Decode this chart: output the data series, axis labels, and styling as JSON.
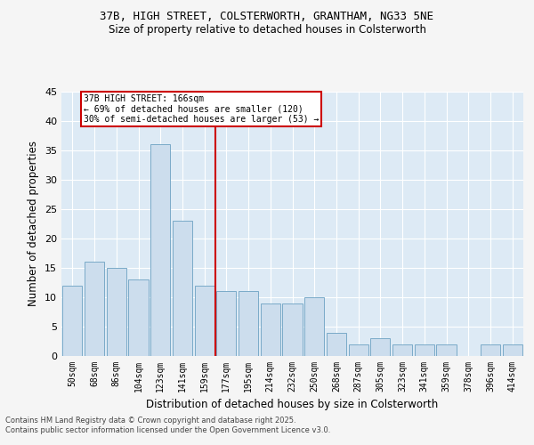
{
  "title_line1": "37B, HIGH STREET, COLSTERWORTH, GRANTHAM, NG33 5NE",
  "title_line2": "Size of property relative to detached houses in Colsterworth",
  "xlabel": "Distribution of detached houses by size in Colsterworth",
  "ylabel": "Number of detached properties",
  "categories": [
    "50sqm",
    "68sqm",
    "86sqm",
    "104sqm",
    "123sqm",
    "141sqm",
    "159sqm",
    "177sqm",
    "195sqm",
    "214sqm",
    "232sqm",
    "250sqm",
    "268sqm",
    "287sqm",
    "305sqm",
    "323sqm",
    "341sqm",
    "359sqm",
    "378sqm",
    "396sqm",
    "414sqm"
  ],
  "values": [
    12,
    16,
    15,
    13,
    36,
    23,
    12,
    11,
    11,
    9,
    9,
    10,
    4,
    2,
    3,
    2,
    2,
    2,
    0,
    2,
    2
  ],
  "bar_color": "#ccdded",
  "bar_edge_color": "#7aaac8",
  "property_line_x": 6.5,
  "annotation_title": "37B HIGH STREET: 166sqm",
  "annotation_line1": "← 69% of detached houses are smaller (120)",
  "annotation_line2": "30% of semi-detached houses are larger (53) →",
  "annotation_box_color": "#cc0000",
  "vline_color": "#cc0000",
  "ylim": [
    0,
    45
  ],
  "yticks": [
    0,
    5,
    10,
    15,
    20,
    25,
    30,
    35,
    40,
    45
  ],
  "background_color": "#ddeaf5",
  "grid_color": "#ffffff",
  "fig_bg_color": "#f5f5f5",
  "footer_line1": "Contains HM Land Registry data © Crown copyright and database right 2025.",
  "footer_line2": "Contains public sector information licensed under the Open Government Licence v3.0."
}
